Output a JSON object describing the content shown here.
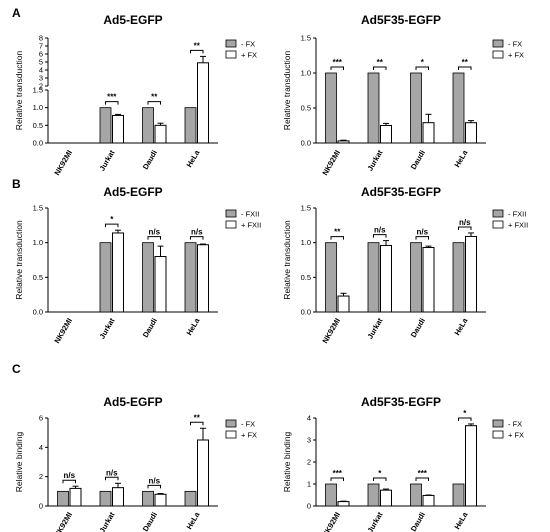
{
  "colors": {
    "gray_bar": "#a6a6a6",
    "open_bar": "#ffffff",
    "ink": "#000000"
  },
  "panels": [
    {
      "letter": "A",
      "row": 0
    },
    {
      "letter": "B",
      "row": 1
    },
    {
      "letter": "C",
      "row": 2
    }
  ],
  "chart_data": [
    {
      "type": "bar",
      "row": 0,
      "col": 0,
      "title": "Ad5-EGFP",
      "ylabel": "Relative transduction",
      "axis_break": true,
      "lower_ylim": [
        0,
        1.5
      ],
      "lower_yticks": [
        "0.0",
        "0.5",
        "1.0",
        "1.5"
      ],
      "upper_ylim": [
        2,
        8
      ],
      "upper_yticks": [
        "2",
        "3",
        "4",
        "5",
        "6",
        "7",
        "8"
      ],
      "categories": [
        "NK92MI",
        "Jurkat",
        "Daudi",
        "HeLa"
      ],
      "legend": [
        "- FX",
        "+ FX"
      ],
      "series": [
        {
          "name": "- FX",
          "values": [
            null,
            1.0,
            1.0,
            1.0
          ],
          "errors": [
            null,
            0,
            0,
            0
          ]
        },
        {
          "name": "+ FX",
          "values": [
            null,
            0.78,
            0.5,
            4.9
          ],
          "errors": [
            null,
            0.03,
            0.06,
            0.8
          ]
        }
      ],
      "significance": [
        null,
        "***",
        "**",
        "**"
      ]
    },
    {
      "type": "bar",
      "row": 0,
      "col": 1,
      "title": "Ad5F35-EGFP",
      "ylabel": "Relative transduction",
      "ylim": [
        0,
        1.5
      ],
      "yticks": [
        "0.0",
        "0.5",
        "1.0",
        "1.5"
      ],
      "categories": [
        "NK92MI",
        "Jurkat",
        "Daudi",
        "HeLa"
      ],
      "legend": [
        "- FX",
        "+ FX"
      ],
      "series": [
        {
          "name": "- FX",
          "values": [
            1.0,
            1.0,
            1.0,
            1.0
          ],
          "errors": [
            0,
            0,
            0,
            0
          ]
        },
        {
          "name": "+ FX",
          "values": [
            0.03,
            0.25,
            0.29,
            0.29
          ],
          "errors": [
            0.01,
            0.03,
            0.12,
            0.03
          ]
        }
      ],
      "significance": [
        "***",
        "**",
        "*",
        "**"
      ]
    },
    {
      "type": "bar",
      "row": 1,
      "col": 0,
      "title": "Ad5-EGFP",
      "ylabel": "Relative transduction",
      "ylim": [
        0,
        1.5
      ],
      "yticks": [
        "0.0",
        "0.5",
        "1.0",
        "1.5"
      ],
      "categories": [
        "NK92MI",
        "Jurkat",
        "Daudi",
        "HeLa"
      ],
      "legend": [
        "- FXII",
        "+ FXII"
      ],
      "series": [
        {
          "name": "- FXII",
          "values": [
            null,
            1.0,
            1.0,
            1.0
          ],
          "errors": [
            null,
            0,
            0,
            0
          ]
        },
        {
          "name": "+ FXII",
          "values": [
            null,
            1.14,
            0.8,
            0.97
          ],
          "errors": [
            null,
            0.04,
            0.15,
            0.01
          ]
        }
      ],
      "significance": [
        null,
        "*",
        "n/s",
        "n/s"
      ]
    },
    {
      "type": "bar",
      "row": 1,
      "col": 1,
      "title": "Ad5F35-EGFP",
      "ylabel": "Relative transduction",
      "ylim": [
        0,
        1.5
      ],
      "yticks": [
        "0.0",
        "0.5",
        "1.0",
        "1.5"
      ],
      "categories": [
        "NK92MI",
        "Jurkat",
        "Daudi",
        "HeLa"
      ],
      "legend": [
        "- FXII",
        "+ FXII"
      ],
      "series": [
        {
          "name": "- FXII",
          "values": [
            1.0,
            1.0,
            1.0,
            1.0
          ],
          "errors": [
            0,
            0,
            0,
            0
          ]
        },
        {
          "name": "+ FXII",
          "values": [
            0.23,
            0.96,
            0.93,
            1.09
          ],
          "errors": [
            0.04,
            0.07,
            0.02,
            0.05
          ]
        }
      ],
      "significance": [
        "**",
        "n/s",
        "n/s",
        "n/s"
      ]
    },
    {
      "type": "bar",
      "row": 2,
      "col": 0,
      "title": "Ad5-EGFP",
      "ylabel": "Relative binding",
      "ylim": [
        0,
        6
      ],
      "yticks": [
        "0",
        "2",
        "4",
        "6"
      ],
      "categories": [
        "NK92MI",
        "Jurkat",
        "Daudi",
        "HeLa"
      ],
      "legend": [
        "- FX",
        "+ FX"
      ],
      "series": [
        {
          "name": "- FX",
          "values": [
            1.0,
            1.0,
            1.0,
            1.0
          ],
          "errors": [
            0,
            0,
            0,
            0
          ]
        },
        {
          "name": "+ FX",
          "values": [
            1.2,
            1.25,
            0.8,
            4.5
          ],
          "errors": [
            0.15,
            0.3,
            0.05,
            0.8
          ]
        }
      ],
      "significance": [
        "n/s",
        "n/s",
        "n/s",
        "**"
      ]
    },
    {
      "type": "bar",
      "row": 2,
      "col": 1,
      "title": "Ad5F35-EGFP",
      "ylabel": "Relative binding",
      "ylim": [
        0,
        4
      ],
      "yticks": [
        "0",
        "1",
        "2",
        "3",
        "4"
      ],
      "categories": [
        "NK92MI",
        "Jurkat",
        "Daudi",
        "HeLa"
      ],
      "legend": [
        "- FX",
        "+ FX"
      ],
      "series": [
        {
          "name": "- FX",
          "values": [
            1.0,
            1.0,
            1.0,
            1.0
          ],
          "errors": [
            0,
            0,
            0,
            0
          ]
        },
        {
          "name": "+ FX",
          "values": [
            0.2,
            0.72,
            0.48,
            3.65
          ],
          "errors": [
            0.02,
            0.05,
            0.02,
            0.08
          ]
        }
      ],
      "significance": [
        "***",
        "*",
        "***",
        "*"
      ]
    }
  ]
}
